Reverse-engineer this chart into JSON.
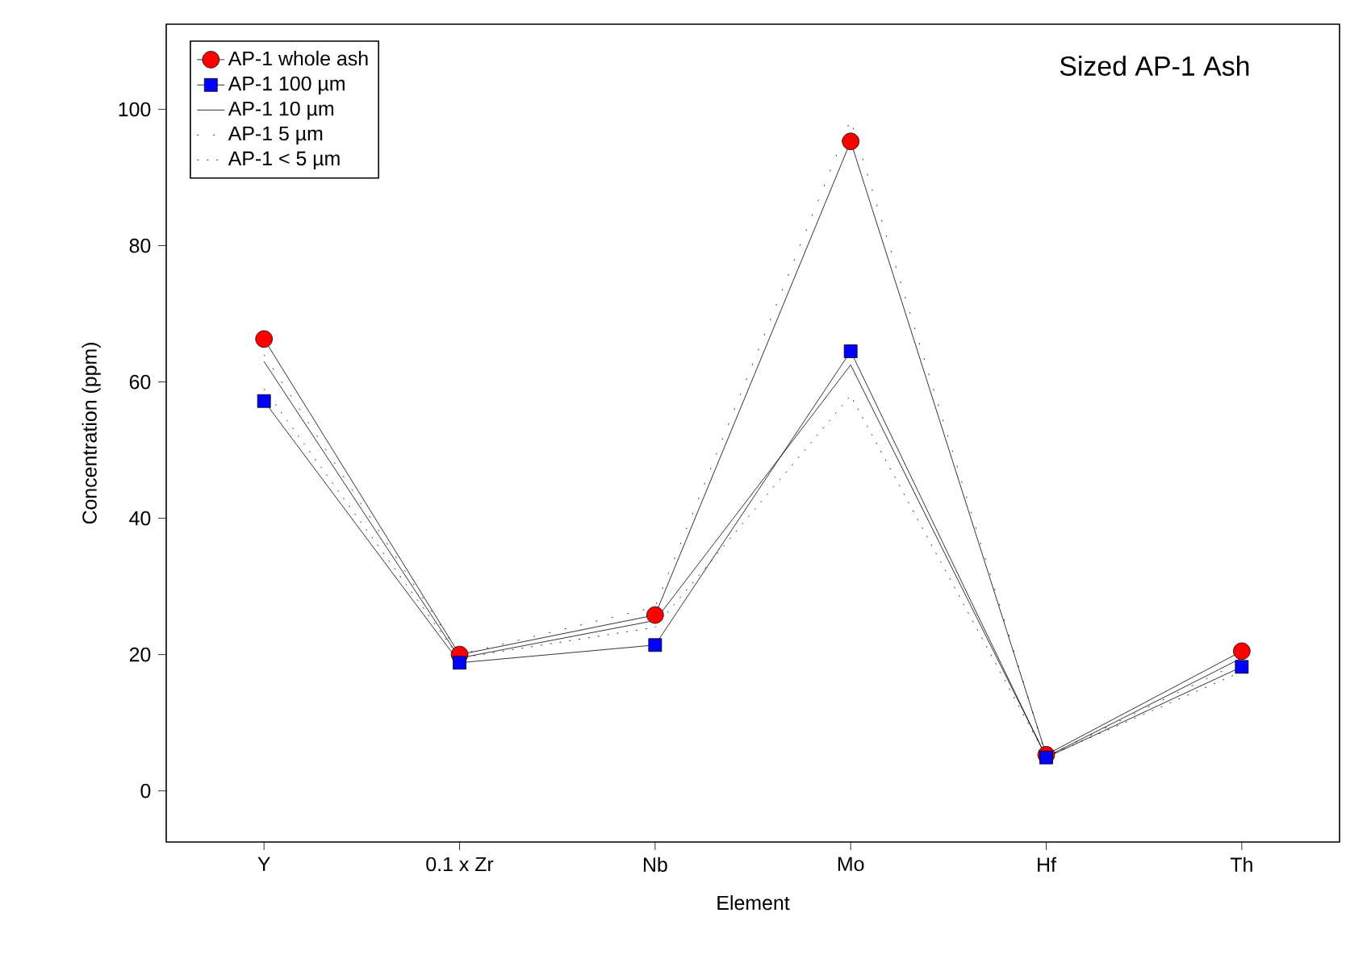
{
  "chart_data": {
    "type": "line",
    "xlabel": "Element",
    "ylabel": "Concentration (ppm)",
    "annotations": [
      "Sized AP-1 Ash"
    ],
    "categories": [
      "Y",
      "0.1 x Zr",
      "Nb",
      "Mo",
      "Hf",
      "Th"
    ],
    "ylim": [
      -7.5,
      112.5
    ],
    "yticks": [
      0,
      20,
      40,
      60,
      80,
      100
    ],
    "legend": "top left",
    "grid": false,
    "series": [
      {
        "name": "AP-1 whole ash",
        "color": "#ff0000",
        "marker": "circle",
        "line_style": "solid",
        "values": [
          66.3,
          20,
          25.8,
          95.3,
          5.3,
          20.5
        ]
      },
      {
        "name": "AP-1 100 µm",
        "color": "#0000ff",
        "marker": "square",
        "line_style": "solid",
        "values": [
          57.2,
          18.8,
          21.4,
          64.5,
          4.9,
          18.2
        ]
      },
      {
        "name": "AP-1 10 µm",
        "color": "#000000",
        "marker": "none",
        "line_style": "solid",
        "values": [
          63,
          19.5,
          25,
          62.5,
          5,
          19.5
        ]
      },
      {
        "name": "AP-1 5 µm",
        "color": "#000000",
        "marker": "none",
        "line_style": "dotted",
        "values": [
          64,
          20,
          27,
          98.5,
          5,
          19
        ]
      },
      {
        "name": "AP-1 < 5 µm",
        "color": "#000000",
        "marker": "none",
        "line_style": "dotted",
        "values": [
          59,
          19.5,
          24,
          58,
          5,
          17.5
        ]
      }
    ]
  }
}
